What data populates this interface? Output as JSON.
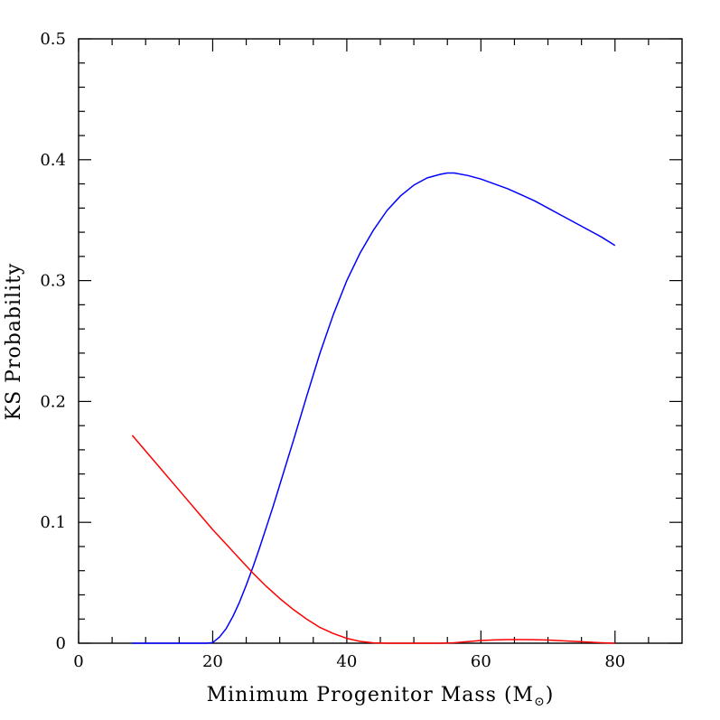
{
  "chart_data": {
    "type": "line",
    "xlabel": "Minimum Progenitor Mass (M",
    "xlabel_symbol": "⊙",
    "xlabel_close": ")",
    "ylabel": "KS Probability",
    "xlim": [
      0,
      90
    ],
    "ylim": [
      0,
      0.5
    ],
    "x_major_ticks": [
      0,
      20,
      40,
      60,
      80
    ],
    "x_minor_ticks": [
      5,
      10,
      15,
      25,
      30,
      35,
      45,
      50,
      55,
      65,
      70,
      75,
      85
    ],
    "y_major_ticks": [
      0,
      0.1,
      0.2,
      0.3,
      0.4,
      0.5
    ],
    "y_minor_ticks": [
      0.02,
      0.04,
      0.06,
      0.08,
      0.12,
      0.14,
      0.16,
      0.18,
      0.22,
      0.24,
      0.26,
      0.28,
      0.32,
      0.34,
      0.36,
      0.38,
      0.42,
      0.44,
      0.46,
      0.48
    ],
    "x_tick_labels": [
      "0",
      "20",
      "40",
      "60",
      "80"
    ],
    "y_tick_labels": [
      "0",
      "0.1",
      "0.2",
      "0.3",
      "0.4",
      "0.5"
    ],
    "series": [
      {
        "name": "blue",
        "color": "#0000ff",
        "x": [
          8,
          12,
          16,
          19,
          20,
          21,
          22,
          23,
          24,
          25,
          26,
          27,
          28,
          29,
          30,
          32,
          34,
          36,
          38,
          40,
          42,
          44,
          46,
          48,
          50,
          52,
          54,
          55,
          56,
          58,
          60,
          62,
          64,
          66,
          68,
          70,
          72,
          74,
          76,
          78,
          80
        ],
        "y": [
          0,
          0,
          0,
          0,
          0.0005,
          0.005,
          0.012,
          0.022,
          0.034,
          0.048,
          0.063,
          0.079,
          0.096,
          0.113,
          0.131,
          0.167,
          0.204,
          0.24,
          0.272,
          0.3,
          0.323,
          0.342,
          0.358,
          0.37,
          0.379,
          0.385,
          0.388,
          0.389,
          0.389,
          0.387,
          0.384,
          0.38,
          0.376,
          0.371,
          0.366,
          0.36,
          0.354,
          0.348,
          0.342,
          0.336,
          0.329
        ]
      },
      {
        "name": "red",
        "color": "#ff0000",
        "x": [
          8,
          10,
          12,
          14,
          16,
          18,
          20,
          22,
          24,
          26,
          28,
          30,
          32,
          34,
          36,
          38,
          40,
          42,
          44,
          46,
          48,
          50,
          52,
          54,
          56,
          58,
          60,
          62,
          64,
          66,
          68,
          70,
          72,
          74,
          76,
          78,
          80
        ],
        "y": [
          0.172,
          0.159,
          0.146,
          0.133,
          0.12,
          0.107,
          0.094,
          0.082,
          0.07,
          0.058,
          0.047,
          0.037,
          0.028,
          0.02,
          0.013,
          0.008,
          0.004,
          0.0015,
          0.0003,
          0,
          0,
          0,
          0,
          0,
          0.0004,
          0.0013,
          0.0022,
          0.0027,
          0.003,
          0.003,
          0.0029,
          0.0026,
          0.0021,
          0.0015,
          0.0009,
          0.0004,
          0
        ]
      }
    ]
  }
}
